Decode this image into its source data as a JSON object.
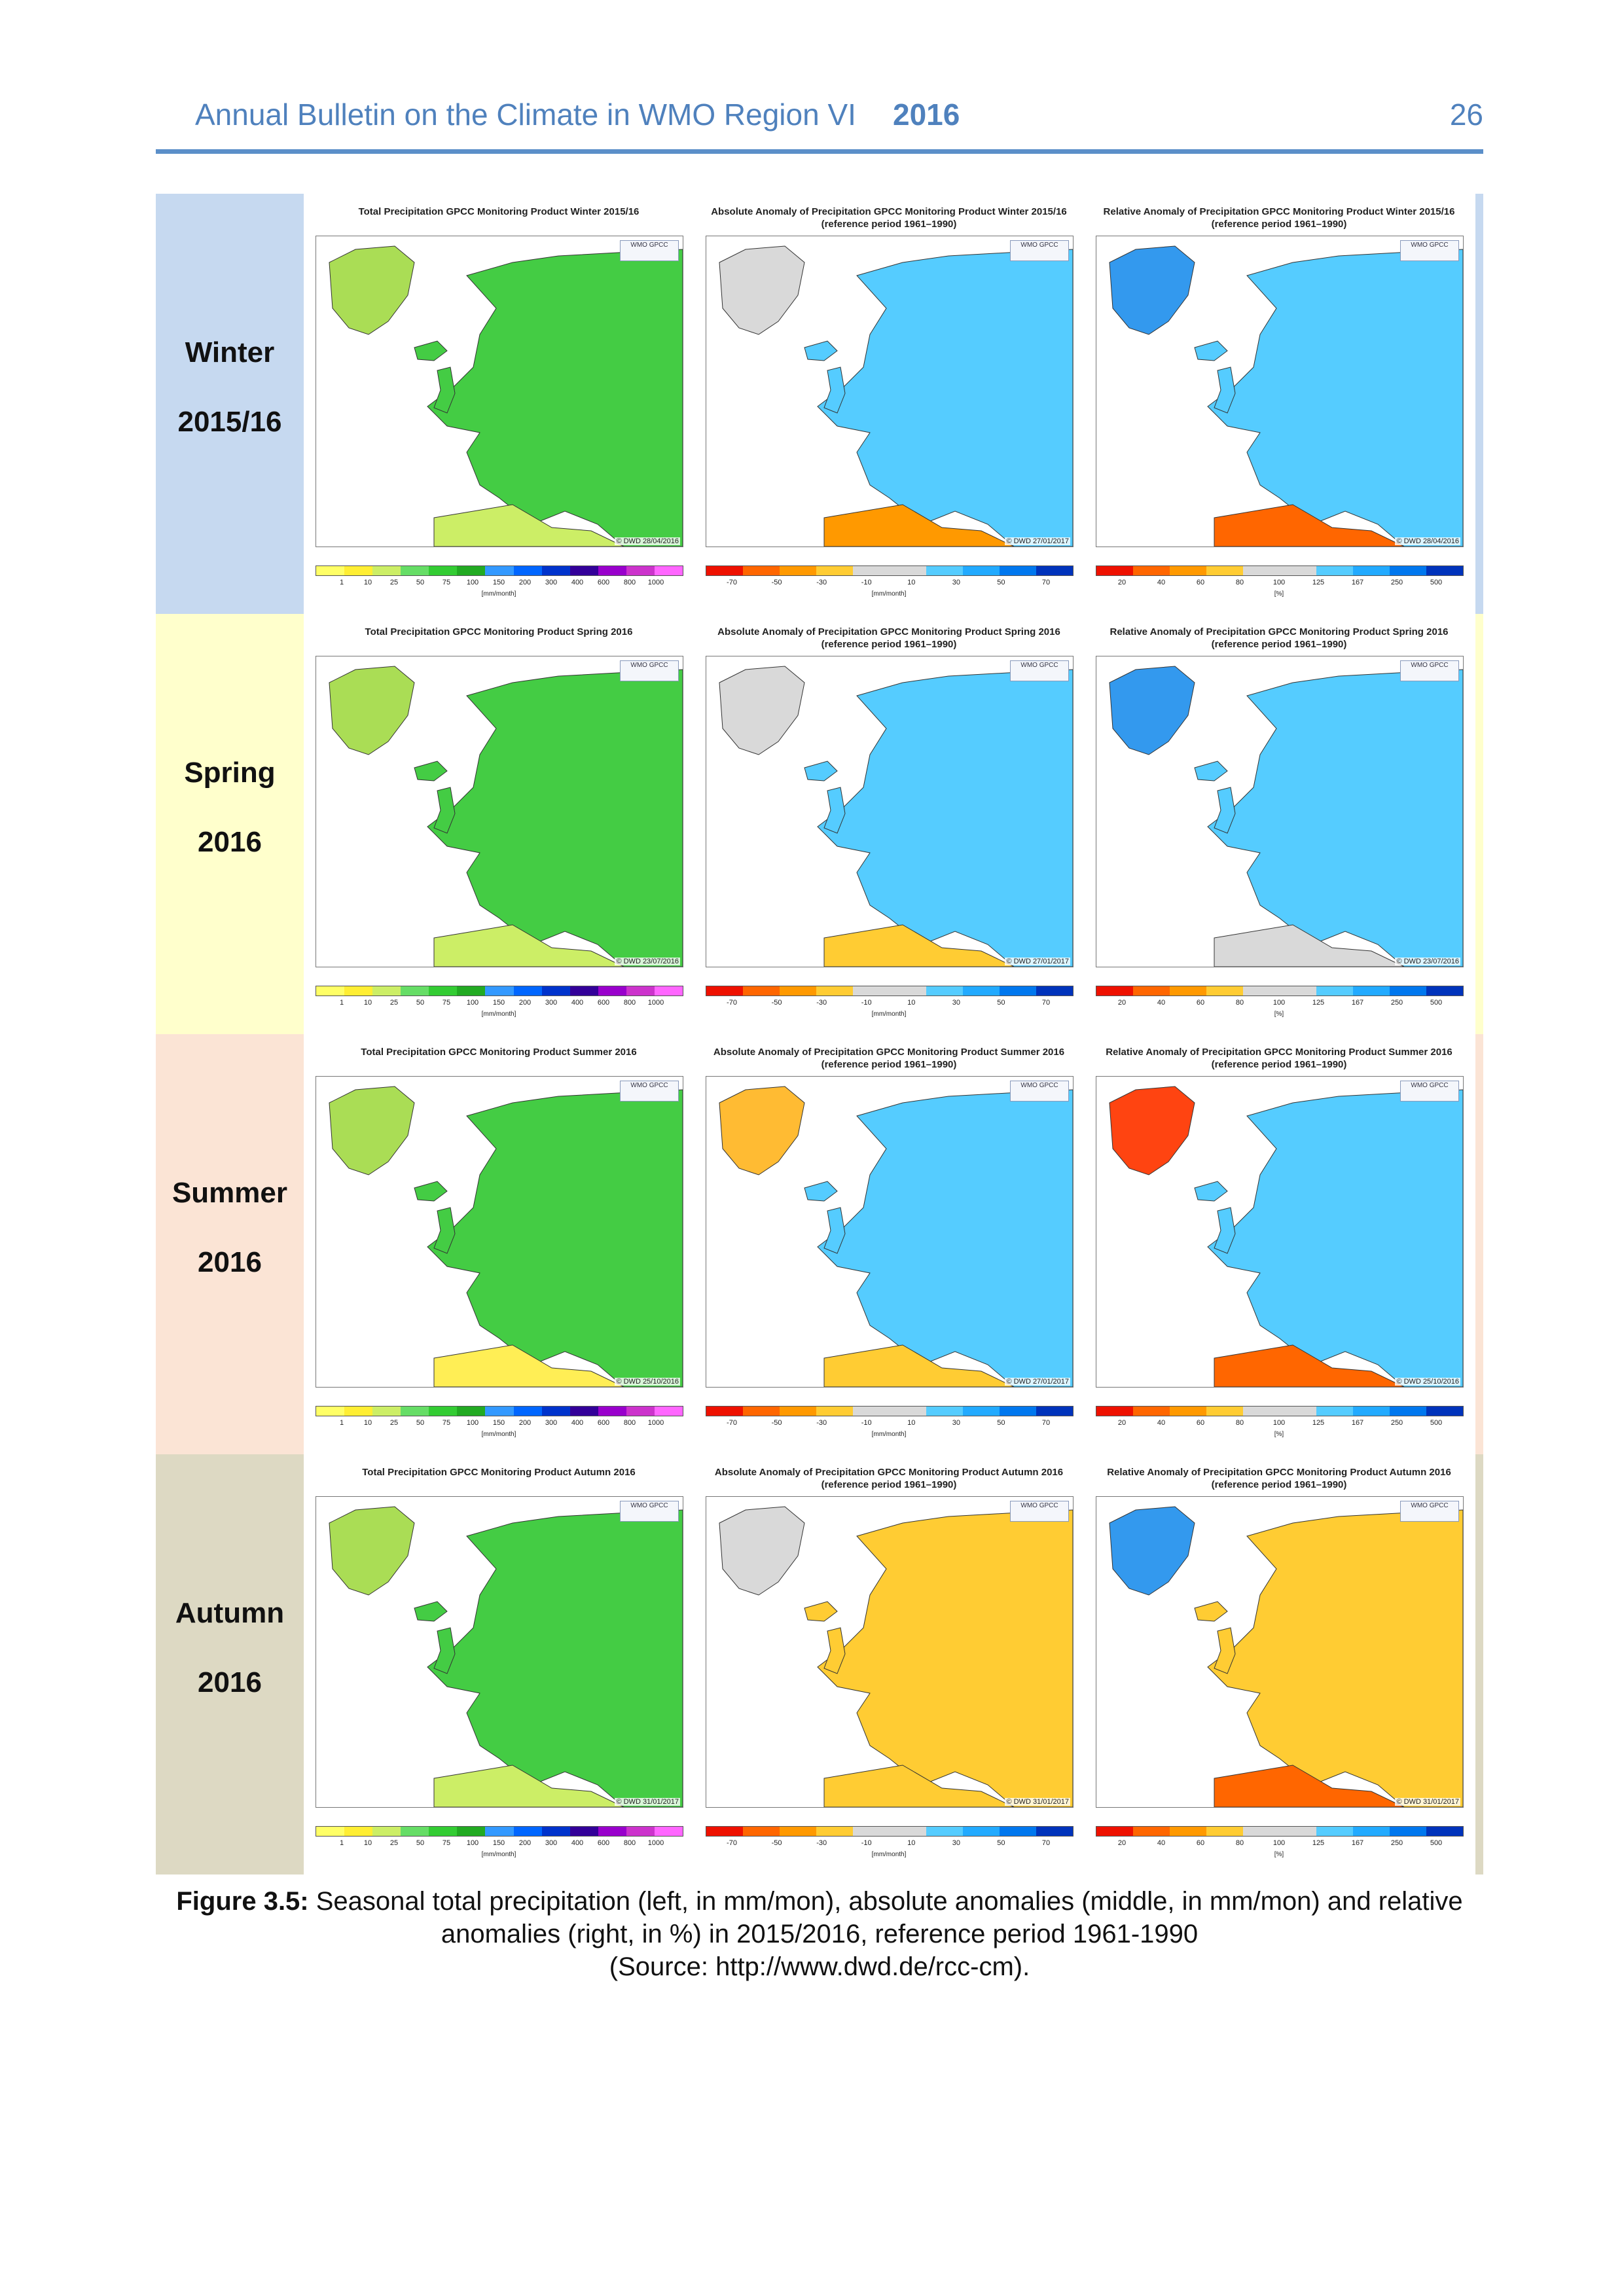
{
  "header": {
    "title": "Annual Bulletin on the Climate in WMO Region VI",
    "year": "2016",
    "page": "26"
  },
  "rows": [
    {
      "season": "Winter",
      "year": "2015/16",
      "label_color": "#c6d9f0",
      "edge_color": "#c6d9f0",
      "titles": [
        "Total Precipitation GPCC Monitoring Product Winter 2015/16",
        "Absolute Anomaly of Precipitation GPCC Monitoring Product Winter 2015/16\n(reference period 1961–1990)",
        "Relative Anomaly of Precipitation GPCC Monitoring Product Winter 2015/16\n(reference period 1961–1990)"
      ],
      "stamps": [
        "© DWD 28/04/2016",
        "© DWD 27/01/2017",
        "© DWD 28/04/2016"
      ]
    },
    {
      "season": "Spring",
      "year": "2016",
      "label_color": "#ffffcc",
      "edge_color": "#ffffcc",
      "titles": [
        "Total Precipitation GPCC Monitoring Product Spring 2016",
        "Absolute Anomaly of Precipitation GPCC Monitoring Product Spring 2016\n(reference period 1961–1990)",
        "Relative Anomaly of Precipitation GPCC Monitoring Product Spring 2016\n(reference period 1961–1990)"
      ],
      "stamps": [
        "© DWD 23/07/2016",
        "© DWD 27/01/2017",
        "© DWD 23/07/2016"
      ]
    },
    {
      "season": "Summer",
      "year": "2016",
      "label_color": "#fbe4d5",
      "edge_color": "#fbe4d5",
      "titles": [
        "Total Precipitation GPCC Monitoring Product Summer 2016",
        "Absolute Anomaly of Precipitation GPCC Monitoring Product Summer 2016\n(reference period 1961–1990)",
        "Relative Anomaly of Precipitation GPCC Monitoring Product Summer 2016\n(reference period 1961–1990)"
      ],
      "stamps": [
        "© DWD 25/10/2016",
        "© DWD 27/01/2017",
        "© DWD 25/10/2016"
      ]
    },
    {
      "season": "Autumn",
      "year": "2016",
      "label_color": "#ddd9c3",
      "edge_color": "#ddd9c3",
      "titles": [
        "Total Precipitation GPCC Monitoring Product Autumn 2016",
        "Absolute Anomaly of Precipitation GPCC Monitoring Product Autumn 2016\n(reference period 1961–1990)",
        "Relative Anomaly of Precipitation GPCC Monitoring Product Autumn 2016\n(reference period 1961–1990)"
      ],
      "stamps": [
        "© DWD 31/01/2017",
        "© DWD 31/01/2017",
        "© DWD 31/01/2017"
      ]
    }
  ],
  "legends": {
    "total": {
      "ticks": [
        "1",
        "10",
        "25",
        "50",
        "75",
        "100",
        "150",
        "200",
        "300",
        "400",
        "600",
        "800",
        "1000"
      ],
      "unit": "[mm/month]",
      "colors": [
        "#ffff66",
        "#ffee33",
        "#ccee66",
        "#66dd66",
        "#33cc33",
        "#22aa22",
        "#3399ff",
        "#0066ff",
        "#0033cc",
        "#330099",
        "#9900cc",
        "#cc33cc",
        "#ff66ff"
      ]
    },
    "absolute": {
      "ticks": [
        "-70",
        "-50",
        "-30",
        "-10",
        "10",
        "30",
        "50",
        "70"
      ],
      "unit": "[mm/month]",
      "colors": [
        "#ee1100",
        "#ff6600",
        "#ff9900",
        "#ffcc33",
        "#d9d9d9",
        "#d9d9d9",
        "#55ccff",
        "#22aaff",
        "#0077ee",
        "#0033bb"
      ]
    },
    "relative": {
      "ticks": [
        "20",
        "40",
        "60",
        "80",
        "100",
        "125",
        "167",
        "250",
        "500"
      ],
      "unit": "[%]",
      "colors": [
        "#ee1100",
        "#ff6600",
        "#ff9900",
        "#ffcc33",
        "#d9d9d9",
        "#d9d9d9",
        "#55ccff",
        "#22aaff",
        "#0077ee",
        "#0033bb"
      ]
    }
  },
  "map_logo": "WMO GPCC",
  "caption": {
    "label": "Figure 3.5:",
    "text": " Seasonal total precipitation (left, in mm/mon), absolute anomalies (middle, in mm/mon) and relative anomalies (right, in %) in 2015/2016, reference period 1961-1990",
    "source": "(Source: http://www.dwd.de/rcc-cm)."
  }
}
